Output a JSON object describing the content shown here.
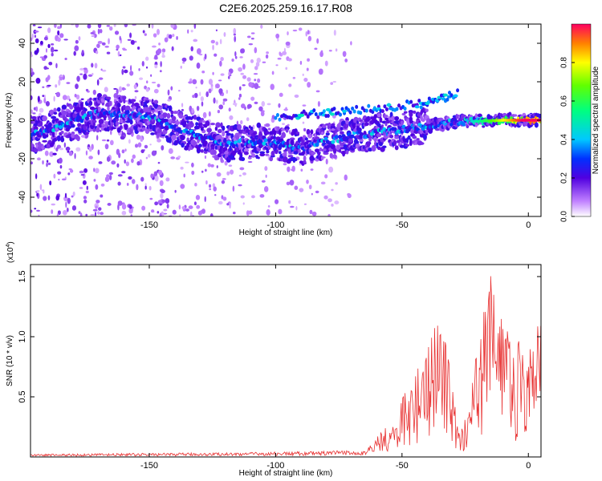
{
  "title": "C2E6.2025.259.16.17.R08",
  "spectrogram": {
    "type": "heatmap",
    "xlabel": "Height of straight line (km)",
    "ylabel": "Frequency (Hz)",
    "xlim": [
      -197,
      5
    ],
    "ylim": [
      -50,
      50
    ],
    "xticks": [
      -150,
      -100,
      -50,
      0
    ],
    "yticks": [
      -40,
      -20,
      0,
      20,
      40
    ],
    "colorbar": {
      "label": "Normalized spectral amplitude",
      "range": [
        0,
        1
      ],
      "ticks": [
        "0.0",
        "0.2",
        "0.4",
        "0.6",
        "0.8"
      ]
    },
    "ridge": [
      {
        "x": -195,
        "y": -7
      },
      {
        "x": -170,
        "y": 4
      },
      {
        "x": -150,
        "y": 2
      },
      {
        "x": -135,
        "y": -6
      },
      {
        "x": -120,
        "y": -12
      },
      {
        "x": -105,
        "y": -11
      },
      {
        "x": -90,
        "y": -14
      },
      {
        "x": -70,
        "y": -8
      },
      {
        "x": -50,
        "y": -5
      },
      {
        "x": -30,
        "y": -1
      },
      {
        "x": -10,
        "y": 0
      },
      {
        "x": 5,
        "y": 0
      }
    ],
    "upper_branch": [
      {
        "x": -100,
        "y": 1
      },
      {
        "x": -80,
        "y": 4
      },
      {
        "x": -60,
        "y": 6
      },
      {
        "x": -40,
        "y": 9
      },
      {
        "x": -28,
        "y": 14
      }
    ]
  },
  "snr": {
    "type": "line",
    "xlabel": "Height of straight line (km)",
    "ylabel": "SNR (10 * v/v)",
    "multiplier": "(x10",
    "multiplier_exp": "4",
    "multiplier_close": ")",
    "xlim": [
      -197,
      5
    ],
    "ylim": [
      0,
      1.6
    ],
    "xticks": [
      -150,
      -100,
      -50,
      0
    ],
    "yticks": [
      0.5,
      1.0,
      1.5
    ],
    "ytick_labels": [
      "0.5",
      "1.0",
      "1.5"
    ],
    "color": "#e83030",
    "envelope": [
      {
        "x": -197,
        "y": 0.02
      },
      {
        "x": -120,
        "y": 0.03
      },
      {
        "x": -80,
        "y": 0.04
      },
      {
        "x": -65,
        "y": 0.05
      },
      {
        "x": -55,
        "y": 0.25
      },
      {
        "x": -47,
        "y": 0.55
      },
      {
        "x": -40,
        "y": 0.8
      },
      {
        "x": -35,
        "y": 1.1
      },
      {
        "x": -30,
        "y": 0.55
      },
      {
        "x": -27,
        "y": 0.15
      },
      {
        "x": -22,
        "y": 0.6
      },
      {
        "x": -18,
        "y": 1.1
      },
      {
        "x": -15,
        "y": 1.55
      },
      {
        "x": -10,
        "y": 1.0
      },
      {
        "x": -5,
        "y": 0.85
      },
      {
        "x": 0,
        "y": 0.95
      },
      {
        "x": 5,
        "y": 1.0
      }
    ]
  }
}
